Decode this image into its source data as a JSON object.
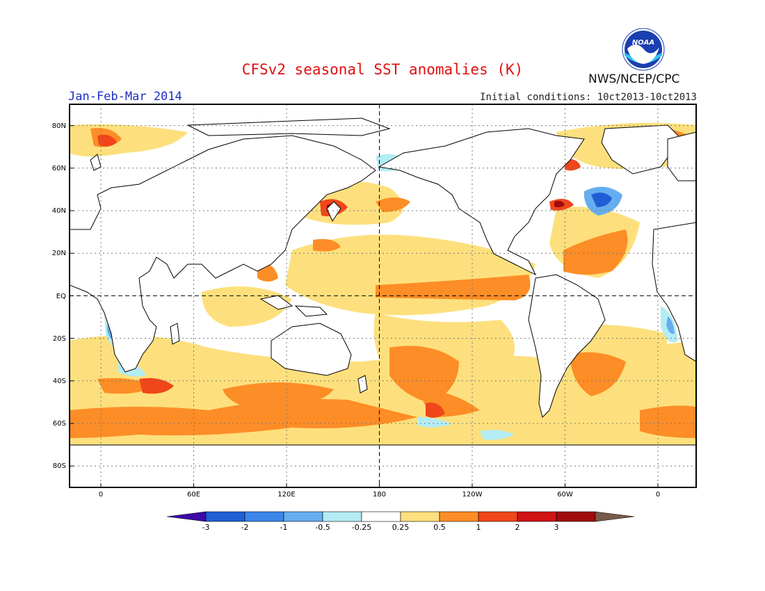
{
  "header": {
    "title": "CFSv2 seasonal SST anomalies (K)",
    "agency": "NWS/NCEP/CPC",
    "period": "Jan-Feb-Mar 2014",
    "initial_conditions": "Initial conditions: 10ct2013-10ct2013",
    "logo_text": "NOAA"
  },
  "map": {
    "lat_labels": [
      "80N",
      "60N",
      "40N",
      "20N",
      "EQ",
      "20S",
      "40S",
      "60S",
      "80S"
    ],
    "lon_labels": [
      "0",
      "60E",
      "120E",
      "180",
      "120W",
      "60W",
      "0"
    ]
  },
  "colorbar": {
    "labels": [
      "-3",
      "-2",
      "-1",
      "-0.5",
      "-0.25",
      "0.25",
      "0.5",
      "1",
      "2",
      "3"
    ],
    "colors": [
      "#3b0aa8",
      "#1f5fd6",
      "#3b86e8",
      "#64aef0",
      "#b4ecf4",
      "#ffffff",
      "#fde07d",
      "#fd8d26",
      "#f0461a",
      "#d01414",
      "#a00a0a",
      "#7a5a4a"
    ]
  }
}
